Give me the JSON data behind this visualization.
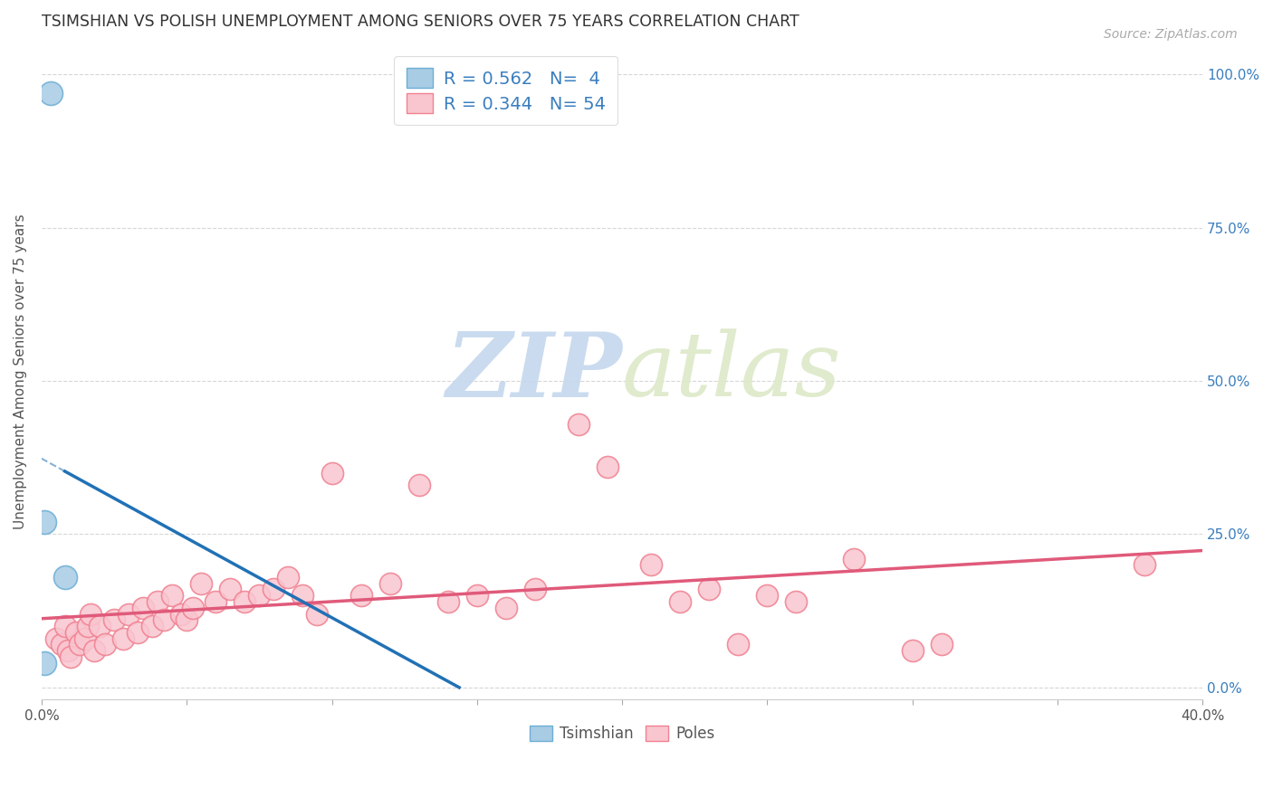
{
  "title": "TSIMSHIAN VS POLISH UNEMPLOYMENT AMONG SENIORS OVER 75 YEARS CORRELATION CHART",
  "source": "Source: ZipAtlas.com",
  "xlabel": "",
  "ylabel": "Unemployment Among Seniors over 75 years",
  "xlim": [
    0.0,
    0.4
  ],
  "ylim": [
    -0.02,
    1.05
  ],
  "xticks": [
    0.0,
    0.05,
    0.1,
    0.15,
    0.2,
    0.25,
    0.3,
    0.35,
    0.4
  ],
  "yticks": [
    0.0,
    0.25,
    0.5,
    0.75,
    1.0
  ],
  "ytick_labels": [
    "0.0%",
    "25.0%",
    "50.0%",
    "75.0%",
    "100.0%"
  ],
  "xtick_labels": [
    "0.0%",
    "",
    "",
    "",
    "",
    "",
    "",
    "",
    "40.0%"
  ],
  "tsimshian_points": [
    [
      0.003,
      0.97
    ],
    [
      0.001,
      0.27
    ],
    [
      0.008,
      0.18
    ],
    [
      0.001,
      0.04
    ]
  ],
  "poles_points": [
    [
      0.005,
      0.08
    ],
    [
      0.007,
      0.07
    ],
    [
      0.008,
      0.1
    ],
    [
      0.009,
      0.06
    ],
    [
      0.01,
      0.05
    ],
    [
      0.012,
      0.09
    ],
    [
      0.013,
      0.07
    ],
    [
      0.015,
      0.08
    ],
    [
      0.016,
      0.1
    ],
    [
      0.017,
      0.12
    ],
    [
      0.018,
      0.06
    ],
    [
      0.02,
      0.1
    ],
    [
      0.022,
      0.07
    ],
    [
      0.025,
      0.11
    ],
    [
      0.028,
      0.08
    ],
    [
      0.03,
      0.12
    ],
    [
      0.033,
      0.09
    ],
    [
      0.035,
      0.13
    ],
    [
      0.038,
      0.1
    ],
    [
      0.04,
      0.14
    ],
    [
      0.042,
      0.11
    ],
    [
      0.045,
      0.15
    ],
    [
      0.048,
      0.12
    ],
    [
      0.05,
      0.11
    ],
    [
      0.052,
      0.13
    ],
    [
      0.055,
      0.17
    ],
    [
      0.06,
      0.14
    ],
    [
      0.065,
      0.16
    ],
    [
      0.07,
      0.14
    ],
    [
      0.075,
      0.15
    ],
    [
      0.08,
      0.16
    ],
    [
      0.085,
      0.18
    ],
    [
      0.09,
      0.15
    ],
    [
      0.095,
      0.12
    ],
    [
      0.1,
      0.35
    ],
    [
      0.11,
      0.15
    ],
    [
      0.12,
      0.17
    ],
    [
      0.13,
      0.33
    ],
    [
      0.14,
      0.14
    ],
    [
      0.15,
      0.15
    ],
    [
      0.16,
      0.13
    ],
    [
      0.17,
      0.16
    ],
    [
      0.185,
      0.43
    ],
    [
      0.195,
      0.36
    ],
    [
      0.21,
      0.2
    ],
    [
      0.22,
      0.14
    ],
    [
      0.23,
      0.16
    ],
    [
      0.24,
      0.07
    ],
    [
      0.25,
      0.15
    ],
    [
      0.26,
      0.14
    ],
    [
      0.28,
      0.21
    ],
    [
      0.3,
      0.06
    ],
    [
      0.31,
      0.07
    ],
    [
      0.38,
      0.2
    ]
  ],
  "tsimshian_color": "#a8cce4",
  "tsimshian_edge_color": "#6baed6",
  "poles_color": "#f9c6d0",
  "poles_edge_color": "#f08090",
  "tsimshian_line_color": "#2171b5",
  "poles_line_color": "#e05a7a",
  "tsimshian_R": 0.562,
  "tsimshian_N": 4,
  "poles_R": 0.344,
  "poles_N": 54,
  "legend_color": "#3a7ebf",
  "watermark_zip": "ZIP",
  "watermark_atlas": "atlas",
  "watermark_color": "#d0dff0",
  "background_color": "#ffffff",
  "grid_color": "#cccccc"
}
